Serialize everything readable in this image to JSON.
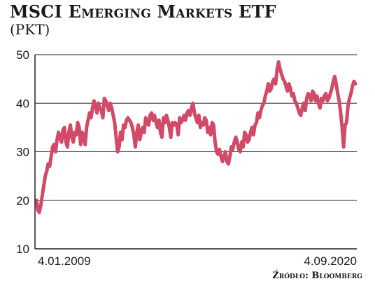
{
  "title": "MSCI Emerging Markets ETF",
  "subtitle": "(PKT)",
  "source": "Źródło: Bloomberg",
  "colors": {
    "line": "#d14a68",
    "grid": "#222222",
    "axis": "#222222"
  },
  "chart_data": {
    "type": "line",
    "title": "MSCI Emerging Markets ETF",
    "subtitle": "(PKT)",
    "ylim": [
      10,
      50
    ],
    "yticks": [
      10,
      20,
      30,
      40,
      50
    ],
    "grid": true,
    "x_labels": [
      "4.01.2009",
      "4.09.2020"
    ],
    "series": [
      {
        "values": [
          20,
          18,
          17.5,
          19,
          21,
          23,
          25,
          26,
          27.5,
          27,
          29,
          31,
          31.5,
          30,
          32.5,
          34,
          33,
          32,
          34.5,
          35,
          32,
          31,
          34,
          35.5,
          33,
          32,
          34,
          33.5,
          36,
          35,
          31.5,
          34,
          33,
          31.5,
          35,
          36.5,
          38,
          37,
          39,
          40.5,
          39.5,
          38,
          40,
          39,
          38.5,
          37,
          41,
          40.5,
          39.5,
          38.5,
          40,
          39,
          37.5,
          36,
          33,
          30,
          31,
          34,
          32.5,
          35.5,
          35,
          36.5,
          37,
          36.5,
          36,
          35,
          33.5,
          31,
          34,
          35.5,
          32.5,
          34,
          35,
          34,
          37,
          36,
          35.5,
          37.5,
          38,
          36.5,
          37.5,
          36,
          35,
          36.5,
          34,
          33,
          37,
          36,
          37.5,
          36.5,
          35,
          33,
          36,
          35.5,
          36,
          35.5,
          33.5,
          37,
          36,
          36.5,
          37.5,
          36.5,
          38,
          38.5,
          37.5,
          39,
          40,
          38,
          37,
          36,
          37.5,
          35,
          36,
          35.5,
          37,
          36.5,
          34,
          35,
          33.5,
          36,
          35.5,
          32,
          30,
          29.5,
          30.5,
          29,
          28,
          29,
          30,
          28,
          27.5,
          29,
          31,
          30.5,
          32,
          33,
          32,
          30.5,
          30,
          32,
          31,
          34,
          33.5,
          32,
          32.5,
          34,
          35,
          33.5,
          35.5,
          36,
          38,
          37,
          38.5,
          39.5,
          40,
          41.5,
          42.5,
          44,
          42.5,
          43,
          44.5,
          45,
          44,
          47,
          48.5,
          47,
          46,
          45,
          44.5,
          43.5,
          42.5,
          44,
          43,
          41.5,
          42,
          40.5,
          40,
          39,
          38,
          37.5,
          39,
          40,
          38.5,
          41,
          42,
          41.5,
          40.5,
          42.5,
          42,
          40.5,
          41.5,
          40,
          39,
          41,
          40.5,
          41.5,
          42,
          40.5,
          41,
          42,
          43,
          44.5,
          45.5,
          44,
          42,
          40.5,
          38,
          35,
          31,
          35.5,
          36,
          39.5,
          41,
          42,
          43.5,
          44.5,
          44
        ]
      }
    ]
  }
}
